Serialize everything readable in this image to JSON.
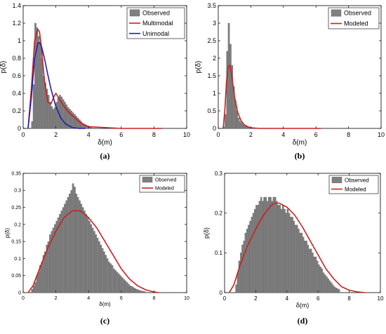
{
  "chart_data": [
    {
      "id": "a",
      "type": "bar",
      "caption": "(a)",
      "xlabel": "δ(m)",
      "ylabel": "p(δ)",
      "xlim": [
        0,
        10
      ],
      "ylim": [
        0,
        1.4
      ],
      "xticks": [
        "0",
        "2",
        "4",
        "6",
        "8",
        "10"
      ],
      "yticks": [
        "0",
        "0.2",
        "0.4",
        "0.6",
        "0.8",
        "1",
        "1.2",
        "1.4"
      ],
      "grid": false,
      "legend_position": "top-right",
      "legend": [
        "Observed",
        "Multimodal",
        "Unimodal"
      ],
      "histogram": {
        "name": "Observed",
        "bin_width": 0.1,
        "x_start": 0.5,
        "values": [
          0.08,
          0.5,
          1.2,
          1.15,
          1.05,
          0.98,
          0.8,
          0.6,
          0.52,
          0.45,
          0.38,
          0.3,
          0.25,
          0.22,
          0.24,
          0.3,
          0.35,
          0.38,
          0.36,
          0.33,
          0.3,
          0.27,
          0.24,
          0.22,
          0.2,
          0.18,
          0.16,
          0.14,
          0.12,
          0.1,
          0.08,
          0.06,
          0.05,
          0.04,
          0.03,
          0.02,
          0.01
        ]
      },
      "series": [
        {
          "name": "Multimodal",
          "x": [
            0.3,
            0.5,
            0.7,
            0.9,
            1.0,
            1.1,
            1.3,
            1.5,
            1.7,
            1.9,
            2.0,
            2.2,
            2.5,
            2.8,
            3.1,
            3.4,
            3.7,
            4.0,
            5.0,
            6.0,
            8.0,
            8.5
          ],
          "y": [
            0.0,
            0.45,
            1.0,
            1.13,
            1.1,
            0.95,
            0.55,
            0.3,
            0.28,
            0.37,
            0.4,
            0.34,
            0.25,
            0.18,
            0.13,
            0.08,
            0.04,
            0.02,
            0.01,
            0.0,
            0.0,
            0.0
          ]
        },
        {
          "name": "Unimodal",
          "x": [
            0.3,
            0.5,
            0.7,
            0.9,
            1.0,
            1.1,
            1.3,
            1.5,
            1.7,
            2.0,
            2.3,
            2.6,
            3.0,
            3.4,
            3.8
          ],
          "y": [
            0.0,
            0.35,
            0.8,
            0.97,
            0.98,
            0.95,
            0.8,
            0.62,
            0.45,
            0.25,
            0.12,
            0.05,
            0.01,
            0.0,
            0.0
          ]
        }
      ]
    },
    {
      "id": "b",
      "type": "bar",
      "caption": "(b)",
      "xlabel": "δ(m)",
      "ylabel": "p(δ)",
      "xlim": [
        0,
        10
      ],
      "ylim": [
        0,
        3.5
      ],
      "xticks": [
        "0",
        "2",
        "4",
        "6",
        "8",
        "10"
      ],
      "yticks": [
        "0",
        "0.5",
        "1",
        "1.5",
        "2",
        "2.5",
        "3",
        "3.5"
      ],
      "grid": false,
      "legend_position": "top-right",
      "legend": [
        "Observed",
        "Modeled"
      ],
      "histogram": {
        "name": "Observed",
        "bin_width": 0.1,
        "x_start": 0.3,
        "values": [
          0.05,
          0.4,
          2.2,
          3.0,
          2.4,
          1.8,
          1.2,
          0.8,
          0.5,
          0.3,
          0.2,
          0.15,
          0.1,
          0.07,
          0.05,
          0.03,
          0.02,
          0.01
        ]
      },
      "series": [
        {
          "name": "Modeled",
          "x": [
            0.3,
            0.4,
            0.5,
            0.6,
            0.7,
            0.8,
            0.9,
            1.0,
            1.2,
            1.4,
            1.6,
            1.8,
            2.0,
            2.5,
            3.0,
            6.3
          ],
          "y": [
            0.0,
            0.5,
            1.3,
            1.75,
            1.8,
            1.6,
            1.25,
            0.9,
            0.45,
            0.22,
            0.1,
            0.05,
            0.02,
            0.0,
            0.0,
            0.0
          ]
        }
      ]
    },
    {
      "id": "c",
      "type": "bar",
      "caption": "(c)",
      "xlabel": "δ(m)",
      "ylabel": "p(δ)",
      "xlim": [
        0,
        10
      ],
      "ylim": [
        0,
        0.35
      ],
      "xticks": [
        "0",
        "2",
        "4",
        "6",
        "8",
        "10"
      ],
      "yticks": [
        "0",
        "0.05",
        "0.1",
        "0.15",
        "0.2",
        "0.25",
        "0.3",
        "0.35"
      ],
      "grid": false,
      "legend_position": "top-right",
      "legend": [
        "Observed",
        "Modeled"
      ],
      "histogram": {
        "name": "Observed",
        "bin_width": 0.1,
        "x_start": 0.5,
        "values": [
          0.01,
          0.02,
          0.03,
          0.05,
          0.06,
          0.08,
          0.09,
          0.11,
          0.12,
          0.14,
          0.15,
          0.17,
          0.18,
          0.19,
          0.2,
          0.21,
          0.22,
          0.23,
          0.24,
          0.25,
          0.26,
          0.27,
          0.28,
          0.29,
          0.3,
          0.32,
          0.31,
          0.29,
          0.28,
          0.27,
          0.26,
          0.25,
          0.24,
          0.23,
          0.22,
          0.21,
          0.2,
          0.19,
          0.18,
          0.17,
          0.16,
          0.15,
          0.14,
          0.13,
          0.12,
          0.11,
          0.1,
          0.09,
          0.085,
          0.08,
          0.07,
          0.065,
          0.06,
          0.055,
          0.05,
          0.045,
          0.04,
          0.035,
          0.03,
          0.025,
          0.02,
          0.018,
          0.015,
          0.012,
          0.01,
          0.008,
          0.006,
          0.005,
          0.004,
          0.003
        ]
      },
      "series": [
        {
          "name": "Modeled",
          "x": [
            0.3,
            0.6,
            1.0,
            1.5,
            2.0,
            2.5,
            3.0,
            3.5,
            4.0,
            4.5,
            5.0,
            5.5,
            6.0,
            6.5,
            7.0,
            7.5,
            8.0,
            8.3
          ],
          "y": [
            0.0,
            0.02,
            0.07,
            0.13,
            0.18,
            0.22,
            0.24,
            0.24,
            0.22,
            0.19,
            0.15,
            0.11,
            0.07,
            0.04,
            0.02,
            0.008,
            0.002,
            0.0
          ]
        }
      ]
    },
    {
      "id": "d",
      "type": "bar",
      "caption": "(d)",
      "xlabel": "δ(m)",
      "ylabel": "p(δ)",
      "xlim": [
        0,
        10
      ],
      "ylim": [
        0,
        0.3
      ],
      "xticks": [
        "0",
        "2",
        "4",
        "6",
        "8",
        "10"
      ],
      "yticks": [
        "0",
        "0.1",
        "0.2",
        "0.3"
      ],
      "grid": false,
      "legend_position": "top-right",
      "legend": [
        "Observed",
        "Modeled"
      ],
      "histogram": {
        "name": "Observed",
        "bin_width": 0.1,
        "x_start": 0.7,
        "values": [
          0.02,
          0.05,
          0.08,
          0.1,
          0.12,
          0.13,
          0.15,
          0.16,
          0.17,
          0.18,
          0.19,
          0.2,
          0.21,
          0.22,
          0.22,
          0.23,
          0.24,
          0.23,
          0.24,
          0.24,
          0.23,
          0.24,
          0.24,
          0.23,
          0.24,
          0.24,
          0.23,
          0.22,
          0.22,
          0.21,
          0.22,
          0.21,
          0.2,
          0.21,
          0.2,
          0.19,
          0.19,
          0.18,
          0.17,
          0.17,
          0.16,
          0.15,
          0.15,
          0.14,
          0.13,
          0.13,
          0.12,
          0.11,
          0.11,
          0.1,
          0.09,
          0.09,
          0.08,
          0.07,
          0.065,
          0.06,
          0.05,
          0.045,
          0.04,
          0.035,
          0.03,
          0.025,
          0.02,
          0.015,
          0.012,
          0.01,
          0.008
        ]
      },
      "series": [
        {
          "name": "Modeled",
          "x": [
            0.3,
            0.6,
            1.0,
            1.5,
            2.0,
            2.5,
            3.0,
            3.2,
            3.5,
            4.0,
            4.5,
            5.0,
            5.5,
            6.0,
            6.5,
            7.0,
            7.5,
            8.0,
            8.5,
            9.0
          ],
          "y": [
            0.0,
            0.02,
            0.07,
            0.12,
            0.16,
            0.195,
            0.22,
            0.225,
            0.225,
            0.215,
            0.195,
            0.165,
            0.13,
            0.095,
            0.06,
            0.035,
            0.015,
            0.006,
            0.002,
            0.0
          ]
        }
      ]
    }
  ]
}
